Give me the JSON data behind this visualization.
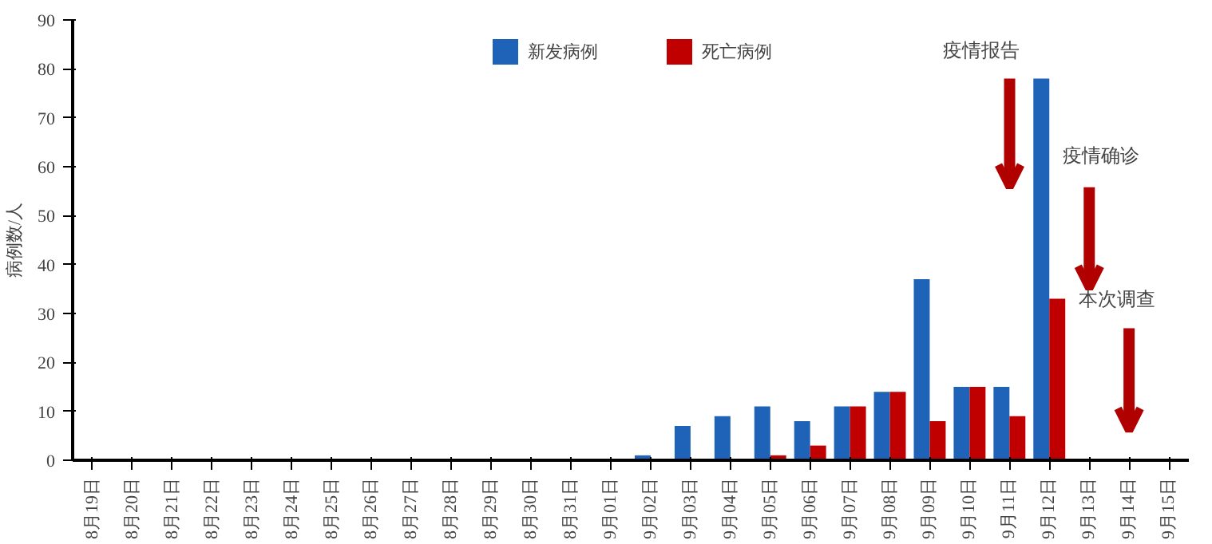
{
  "chart_data": {
    "type": "bar",
    "ylabel": "病例数/人",
    "categories": [
      "8月19日",
      "8月20日",
      "8月21日",
      "8月22日",
      "8月23日",
      "8月24日",
      "8月25日",
      "8月26日",
      "8月27日",
      "8月28日",
      "8月29日",
      "8月30日",
      "8月31日",
      "9月01日",
      "9月02日",
      "9月03日",
      "9月04日",
      "9月05日",
      "9月06日",
      "9月07日",
      "9月08日",
      "9月09日",
      "9月10日",
      "9月11日",
      "9月12日",
      "9月13日",
      "9月14日",
      "9月15日"
    ],
    "series": [
      {
        "name": "新发病例",
        "color": "#1f63b8",
        "values": [
          0,
          0,
          0,
          0,
          0,
          0,
          0,
          0,
          0,
          0,
          0,
          0,
          0,
          0,
          1,
          7,
          9,
          11,
          8,
          11,
          14,
          37,
          15,
          15,
          78,
          0,
          0,
          0
        ]
      },
      {
        "name": "死亡病例",
        "color": "#c00000",
        "values": [
          0,
          0,
          0,
          0,
          0,
          0,
          0,
          0,
          0,
          0,
          0,
          0,
          0,
          0,
          0,
          0,
          0,
          1,
          3,
          11,
          14,
          8,
          15,
          9,
          33,
          0,
          0,
          0
        ]
      }
    ],
    "ylim": [
      0,
      90
    ],
    "yticks": [
      0,
      10,
      20,
      30,
      40,
      50,
      60,
      70,
      80,
      90
    ],
    "grid": false,
    "legend": "top",
    "annotations": [
      "疫情报告",
      "疫情确诊",
      "本次调查"
    ]
  }
}
